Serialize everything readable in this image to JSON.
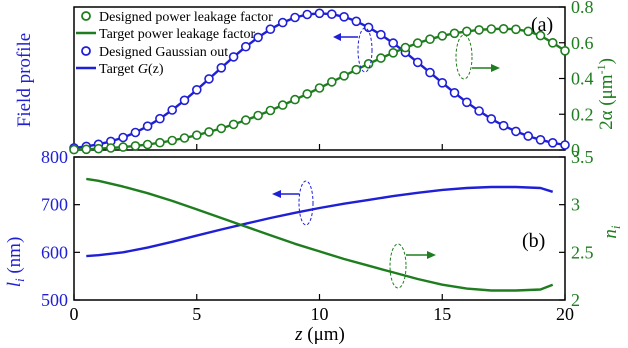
{
  "panel_a_label": "(a)",
  "panel_b_label": "(b)",
  "colors": {
    "blue": "#1f1fd6",
    "green": "#1e7d1e",
    "axis": "#000000"
  },
  "chart_data": [
    {
      "type": "line",
      "panel": "(a)",
      "ylabel_left": "Field profile",
      "ylabel_right_main": "2α (μm",
      "ylabel_right_sup": "-1",
      "ylabel_right_end": ")",
      "xlim": [
        0,
        20
      ],
      "ylim_right": [
        0,
        0.8
      ],
      "yticks_right": [
        "0",
        "0.2",
        "0.4",
        "0.6",
        "0.8"
      ],
      "yticks_right_values": [
        0,
        0.2,
        0.4,
        0.6,
        0.8
      ],
      "legend": [
        {
          "label": "Designed power leakage factor",
          "style": "marker",
          "color": "green"
        },
        {
          "label": "Target power leakage factor",
          "style": "line",
          "color": "green"
        },
        {
          "label": "Designed Gaussian out",
          "style": "marker",
          "color": "blue"
        },
        {
          "label_main": "Target ",
          "label_italic": "G",
          "label_end": "(z)",
          "style": "line",
          "color": "blue"
        }
      ],
      "gaussian": {
        "x": [
          0,
          0.5,
          1,
          1.5,
          2,
          2.5,
          3,
          3.5,
          4,
          4.5,
          5,
          5.5,
          6,
          6.5,
          7,
          7.5,
          8,
          8.5,
          9,
          9.5,
          10,
          10.5,
          11,
          11.5,
          12,
          12.5,
          13,
          13.5,
          14,
          14.5,
          15,
          15.5,
          16,
          16.5,
          17,
          17.5,
          18,
          18.5,
          19,
          19.5,
          20
        ],
        "y": [
          0.012,
          0.02,
          0.032,
          0.048,
          0.07,
          0.098,
          0.133,
          0.175,
          0.224,
          0.278,
          0.337,
          0.398,
          0.46,
          0.521,
          0.578,
          0.63,
          0.676,
          0.713,
          0.741,
          0.758,
          0.765,
          0.76,
          0.745,
          0.72,
          0.686,
          0.645,
          0.598,
          0.546,
          0.49,
          0.433,
          0.376,
          0.32,
          0.267,
          0.218,
          0.174,
          0.136,
          0.104,
          0.078,
          0.057,
          0.04,
          0.028
        ]
      },
      "leakage": {
        "x": [
          0,
          0.5,
          1,
          1.5,
          2,
          2.5,
          3,
          3.5,
          4,
          4.5,
          5,
          5.5,
          6,
          6.5,
          7,
          7.5,
          8,
          8.5,
          9,
          9.5,
          10,
          10.5,
          11,
          11.5,
          12,
          12.5,
          13,
          13.5,
          14,
          14.5,
          15,
          15.5,
          16,
          16.5,
          17,
          17.5,
          18,
          18.5,
          19,
          19.5,
          20
        ],
        "y": [
          0.002,
          0.004,
          0.007,
          0.011,
          0.016,
          0.023,
          0.031,
          0.041,
          0.053,
          0.067,
          0.083,
          0.101,
          0.121,
          0.143,
          0.167,
          0.193,
          0.221,
          0.251,
          0.282,
          0.314,
          0.347,
          0.381,
          0.415,
          0.449,
          0.482,
          0.514,
          0.544,
          0.573,
          0.598,
          0.62,
          0.639,
          0.653,
          0.664,
          0.672,
          0.677,
          0.678,
          0.675,
          0.664,
          0.64,
          0.6,
          0.555
        ]
      }
    },
    {
      "type": "line",
      "panel": "(b)",
      "ylabel_left_italic": "l",
      "ylabel_left_sub": "i",
      "ylabel_left_end": " (nm)",
      "ylabel_right_italic": "n",
      "ylabel_right_sub": "i",
      "xlabel_italic": "z",
      "xlabel_end": " (μm)",
      "xlim": [
        0,
        20
      ],
      "xticks": [
        "0",
        "5",
        "10",
        "15",
        "20"
      ],
      "xticks_values": [
        0,
        5,
        10,
        15,
        20
      ],
      "ylim_left": [
        500,
        800
      ],
      "yticks_left": [
        "500",
        "600",
        "700",
        "800"
      ],
      "yticks_left_values": [
        500,
        600,
        700,
        800
      ],
      "ylim_right": [
        2,
        3.5
      ],
      "yticks_right": [
        "2",
        "2.5",
        "3",
        "3.5"
      ],
      "yticks_right_values": [
        2,
        2.5,
        3,
        3.5
      ],
      "series": [
        {
          "axis": "left",
          "color": "blue",
          "x": [
            0.5,
            1,
            2,
            3,
            4,
            5,
            6,
            7,
            8,
            9,
            10,
            11,
            12,
            13,
            14,
            15,
            16,
            17,
            18,
            19,
            19.5
          ],
          "y": [
            592,
            594,
            600,
            610,
            622,
            635,
            648,
            660,
            672,
            683,
            693,
            702,
            710,
            718,
            725,
            731,
            735,
            737,
            737,
            735,
            727
          ]
        },
        {
          "axis": "right",
          "color": "green",
          "x": [
            0.5,
            1,
            2,
            3,
            4,
            5,
            6,
            7,
            8,
            9,
            10,
            11,
            12,
            13,
            14,
            15,
            16,
            17,
            18,
            19,
            19.5
          ],
          "y": [
            3.27,
            3.25,
            3.19,
            3.12,
            3.04,
            2.95,
            2.86,
            2.77,
            2.68,
            2.59,
            2.51,
            2.43,
            2.36,
            2.29,
            2.22,
            2.16,
            2.12,
            2.1,
            2.1,
            2.11,
            2.16
          ]
        }
      ]
    }
  ]
}
